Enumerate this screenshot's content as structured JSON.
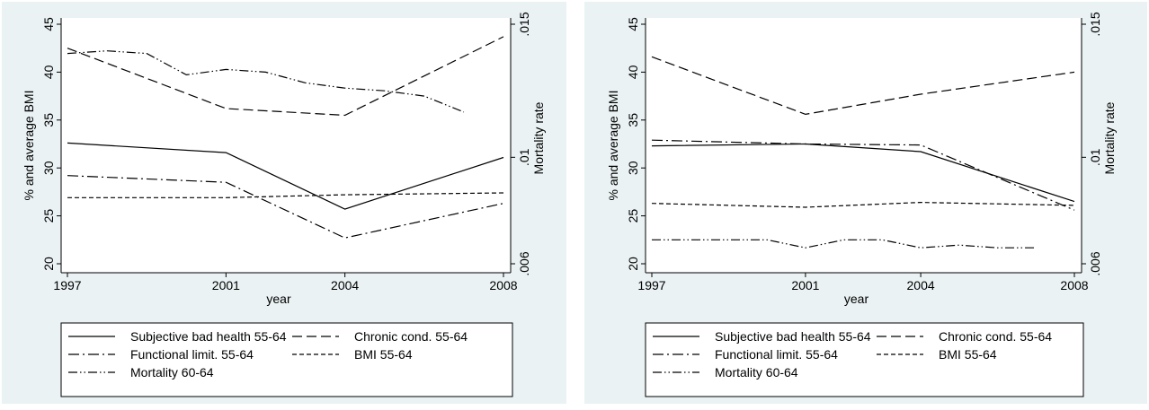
{
  "chart_data": [
    {
      "type": "line",
      "xlabel": "year",
      "ylabel_left": "% and average BMI",
      "ylabel_right": "Mortality rate",
      "xlim": [
        1997,
        2008
      ],
      "ylim_left": [
        20,
        45
      ],
      "ylim_right": [
        0.006,
        0.015
      ],
      "x_ticks": [
        1997,
        2001,
        2004,
        2008
      ],
      "y_ticks_left": [
        20,
        25,
        30,
        35,
        40,
        45
      ],
      "y_ticks_right": [
        {
          "value": 0.006,
          "label": ".006"
        },
        {
          "value": 0.01,
          "label": ".01"
        },
        {
          "value": 0.015,
          "label": ".015"
        }
      ],
      "grid": false,
      "legend_position": "bottom",
      "series": [
        {
          "name": "Subjective bad health 55-64",
          "dash": "solid",
          "axis": "left",
          "x": [
            1997,
            2001,
            2004,
            2008
          ],
          "y": [
            32.6,
            31.6,
            25.7,
            31.1
          ]
        },
        {
          "name": "Chronic cond. 55-64",
          "dash": "long",
          "axis": "left",
          "x": [
            1997,
            2001,
            2004,
            2008
          ],
          "y": [
            42.5,
            36.2,
            35.5,
            43.7
          ]
        },
        {
          "name": "Functional limit. 55-64",
          "dash": "dashdot",
          "axis": "left",
          "x": [
            1997,
            2001,
            2004,
            2008
          ],
          "y": [
            29.2,
            28.5,
            22.7,
            26.3
          ]
        },
        {
          "name": "BMI 55-64",
          "dash": "short",
          "axis": "left",
          "x": [
            1997,
            2001,
            2004,
            2008
          ],
          "y": [
            26.9,
            26.9,
            27.2,
            27.4
          ]
        },
        {
          "name": "Mortality 60-64",
          "dash": "dashdotdot",
          "axis": "right",
          "x": [
            1997,
            1998,
            1999,
            2000,
            2001,
            2002,
            2003,
            2004,
            2005,
            2006,
            2007
          ],
          "y": [
            0.0139,
            0.014,
            0.0139,
            0.0131,
            0.0133,
            0.0132,
            0.0128,
            0.0126,
            0.0125,
            0.0123,
            0.0117
          ]
        }
      ]
    },
    {
      "type": "line",
      "xlabel": "year",
      "ylabel_left": "% and average BMI",
      "ylabel_right": "Mortality rate",
      "xlim": [
        1997,
        2008
      ],
      "ylim_left": [
        20,
        45
      ],
      "ylim_right": [
        0.006,
        0.015
      ],
      "x_ticks": [
        1997,
        2001,
        2004,
        2008
      ],
      "y_ticks_left": [
        20,
        25,
        30,
        35,
        40,
        45
      ],
      "y_ticks_right": [
        {
          "value": 0.006,
          "label": ".006"
        },
        {
          "value": 0.01,
          "label": ".01"
        },
        {
          "value": 0.015,
          "label": ".015"
        }
      ],
      "grid": false,
      "legend_position": "bottom",
      "series": [
        {
          "name": "Subjective bad health 55-64",
          "dash": "solid",
          "axis": "left",
          "x": [
            1997,
            2001,
            2004,
            2008
          ],
          "y": [
            32.3,
            32.5,
            31.7,
            26.5
          ]
        },
        {
          "name": "Chronic cond. 55-64",
          "dash": "long",
          "axis": "left",
          "x": [
            1997,
            2001,
            2004,
            2008
          ],
          "y": [
            41.6,
            35.6,
            37.7,
            40.0
          ]
        },
        {
          "name": "Functional limit. 55-64",
          "dash": "dashdot",
          "axis": "left",
          "x": [
            1997,
            2001,
            2004,
            2008
          ],
          "y": [
            32.9,
            32.5,
            32.4,
            25.6
          ]
        },
        {
          "name": "BMI 55-64",
          "dash": "short",
          "axis": "left",
          "x": [
            1997,
            2001,
            2004,
            2008
          ],
          "y": [
            26.3,
            25.9,
            26.4,
            26.1
          ]
        },
        {
          "name": "Mortality 60-64",
          "dash": "dashdotdot",
          "axis": "right",
          "x": [
            1997,
            1998,
            1999,
            2000,
            2001,
            2002,
            2003,
            2004,
            2005,
            2006,
            2007
          ],
          "y": [
            0.0069,
            0.0069,
            0.0069,
            0.0069,
            0.0066,
            0.0069,
            0.0069,
            0.0066,
            0.0067,
            0.0066,
            0.0066
          ]
        }
      ]
    }
  ]
}
